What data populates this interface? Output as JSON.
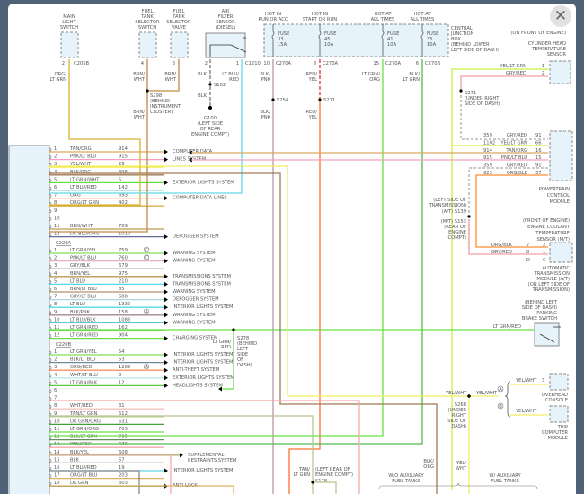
{
  "components": {
    "main_light_switch": {
      "label": [
        "MAIN",
        "LIGHT",
        "SWITCH"
      ],
      "pin": "2",
      "connector": "C205B",
      "wire": [
        "ORG/",
        "LT GRN"
      ]
    },
    "fuel_tank_selector_switch": {
      "label": [
        "FUEL",
        "TANK",
        "SELECTOR",
        "SWITCH"
      ],
      "pin": "4",
      "wire": [
        "BRN/",
        "WHT"
      ]
    },
    "fuel_tank_selector_valve": {
      "label": [
        "FUEL",
        "TANK",
        "SELECTOR",
        "VALVE"
      ],
      "pin": "3",
      "wire": [
        "BRN/",
        "WHT"
      ]
    },
    "s298": {
      "label": [
        "S298",
        "(BEHIND",
        "INSTRUMENT",
        "CLUSTER)"
      ],
      "wire": [
        "BRN/",
        "WHT"
      ]
    },
    "air_filter_sensor": {
      "label": [
        "AIR",
        "FILTER",
        "SENSOR",
        "(DIESEL)"
      ],
      "pin1": "1",
      "pin2": "2",
      "connector": "C1210",
      "wire_blk": "BLK",
      "wire_2": [
        "LT BLU/",
        "RED"
      ],
      "splice": "S102",
      "wire_blk2": "BLK",
      "ground": [
        "G100",
        "(LEFT SIDE",
        "OF REAR",
        "ENGINE COMPT)"
      ]
    },
    "central_junction_box": {
      "label": [
        "CENTRAL",
        "JUNCTION",
        "BOX",
        "(BEHIND LOWER",
        "LEFT SIDE OF DASH)"
      ],
      "fuses": [
        {
          "hot": [
            "HOT IN",
            "RUN OR ACC"
          ],
          "fuse": [
            "FUSE",
            "33",
            "15A"
          ],
          "pin": "10",
          "connector": "C270A",
          "wire": [
            "BLK/",
            "PNK"
          ],
          "splice": "S254",
          "wire2": [
            "BLK/",
            "PNK"
          ]
        },
        {
          "hot": [
            "HOT IN",
            "START OR RUN"
          ],
          "fuse": [
            "FUSE",
            "45",
            "10A"
          ],
          "pin": "8",
          "connector": "C270A",
          "wire": [
            "RED/",
            "YEL"
          ],
          "splice": "S271",
          "wire2": [
            "RED/",
            "YEL"
          ]
        },
        {
          "hot": [
            "HOT AT",
            "ALL TIMES"
          ],
          "fuse": [
            "FUSE",
            "41",
            "10A"
          ],
          "pin": "15",
          "connector": "C270A",
          "wire": [
            "LT GRN/",
            "ORG"
          ]
        },
        {
          "hot": [
            "HOT AT",
            "ALL TIMES"
          ],
          "fuse": [
            "FUSE",
            "35",
            "10A"
          ],
          "pin": "6",
          "connector": "C270B",
          "wire": [
            "BLK/",
            "LT GRN"
          ]
        }
      ]
    },
    "cyl_head_temp_sensor": {
      "label": [
        "(ON FRONT OF ENGINE)",
        "CYLINDER HEAD",
        "TEMPERATURE",
        "SENSOR"
      ],
      "pins": [
        {
          "wire": "YEL/LT GRN",
          "pin": "1"
        },
        {
          "wire": "GRY/RED",
          "pin": "2"
        }
      ],
      "splice": [
        "S271",
        "(UNDER RIGHT",
        "SIDE OF DASH)"
      ]
    },
    "pcm": {
      "label": [
        "POWERTRAIN",
        "CONTROL",
        "MODULE"
      ],
      "pins": [
        {
          "circuit": "359",
          "wire": "GRY/RED",
          "pin": "91"
        },
        {
          "circuit": "1102",
          "wire": "YEL/LT GRN",
          "pin": "66"
        },
        {
          "circuit": "914",
          "wire": "TAN/ORG",
          "pin": "16"
        },
        {
          "circuit": "915",
          "wire": "PNK/LT BLU",
          "pin": "15"
        },
        {
          "circuit": "359",
          "wire": "GRY/RED",
          "pin": "91"
        },
        {
          "circuit": "923",
          "wire": "ORG/BLK",
          "pin": "37"
        }
      ]
    },
    "s139": {
      "label": [
        "(LEFT SIDE OF",
        "TRANSMISSION)",
        "(A/T)   S139"
      ],
      "label2": [
        "(M/T)   S153",
        "(REAR OF",
        "ENGINE",
        "COMPT)"
      ]
    },
    "ect_sensor": {
      "label": [
        "(FRONT OF ENGINE)",
        "ENGINE COOLANT",
        "TEMPERATURE",
        "SENSOR (M/T)"
      ],
      "pins": [
        {
          "wire": "ORG/BLK",
          "n": "7",
          "pin": "2"
        },
        {
          "wire": "GRY/RED",
          "n": "8",
          "pin": "1"
        }
      ]
    },
    "atm": {
      "label": [
        "AUTOMATIC",
        "TRANSMISSION",
        "MODULE (A/T)",
        "(ON LEFT SIDE OF",
        "TRANSMISSION)"
      ],
      "marks": [
        "D",
        "C"
      ]
    },
    "parking_brake_switch": {
      "label": [
        "(BEHIND LEFT",
        "SIDE OF DASH)",
        "PARKING",
        "BRAKE SWITCH"
      ],
      "wire": "LT GRN/RED"
    },
    "s278": {
      "label": [
        "S278",
        "(BEHIND",
        "LEFT",
        "SIDE",
        "OF",
        "DASH)"
      ],
      "wire": [
        "LT GRN/",
        "RED"
      ]
    },
    "s268": {
      "label": [
        "S268",
        "(UNDER",
        "RIGHT",
        "SIDE OF",
        "DASH)"
      ],
      "wire_left": "YEL/WHT",
      "wire_right": "YEL/WHT",
      "wire_down": [
        "YEL/",
        "WHT"
      ]
    },
    "overhead_console": {
      "label": [
        "OVERHEAD",
        "CONSOLE"
      ],
      "wire": "YEL/WHT",
      "pin": "3",
      "mark": "A"
    },
    "trip_computer": {
      "label": [
        "TRIP",
        "COMPUTER",
        "MODULE"
      ],
      "wire": "YEL/WHT",
      "mark": "B"
    },
    "bottom": {
      "blk_org": [
        "BLK/",
        "ORG"
      ],
      "wo_aux": [
        "W/O AUXILIARY",
        "FUEL TANKS"
      ],
      "w_aux": [
        "W/ AUXILIARY",
        "FUEL TANKS"
      ],
      "tan_lt_grn": [
        "TAN/",
        "LT GRN"
      ],
      "s178": [
        "(LEFT REAR OF",
        "ENGINE COMPT)",
        "S178"
      ]
    }
  },
  "connectors": [
    {
      "name": "",
      "rows": [
        {
          "pin": "1",
          "wire": "TAN/ORG",
          "circuit": "914",
          "color": "#d9a860",
          "dest": "COMPUTER DATA",
          "mark": ""
        },
        {
          "pin": "2",
          "wire": "PNK/LT BLU",
          "circuit": "915",
          "color": "#f4a0c0",
          "dest": "LINES SYSTEM",
          "mark": ""
        },
        {
          "pin": "3",
          "wire": "YEL/WHT",
          "circuit": "29",
          "color": "#f2ee60",
          "dest": "",
          "mark": ""
        },
        {
          "pin": "4",
          "wire": "BLK/ORG",
          "circuit": "396",
          "color": "#a07850",
          "dest": "",
          "mark": ""
        },
        {
          "pin": "5",
          "wire": "LT GRN/WHT",
          "circuit": "5",
          "color": "#66e040",
          "dest": "EXTERIOR LIGHTS SYSTEM",
          "mark": ""
        },
        {
          "pin": "6",
          "wire": "LT BLU/RED",
          "circuit": "142",
          "color": "#7fdcec",
          "dest": "",
          "mark": ""
        },
        {
          "pin": "7",
          "wire": "ORG",
          "circuit": "693",
          "color": "#ff8c30",
          "dest": "COMPUTER DATA LINES",
          "mark": ""
        },
        {
          "pin": "8",
          "wire": "ORG/LT GRN",
          "circuit": "402",
          "color": "#d8b040",
          "dest": "",
          "mark": ""
        },
        {
          "pin": "9",
          "wire": "",
          "circuit": "",
          "color": "",
          "dest": "",
          "mark": ""
        },
        {
          "pin": "10",
          "wire": "",
          "circuit": "",
          "color": "",
          "dest": "",
          "mark": ""
        },
        {
          "pin": "11",
          "wire": "BRN/WHT",
          "circuit": "789",
          "color": "#c09850",
          "dest": "",
          "mark": ""
        },
        {
          "pin": "12",
          "wire": "DK BLU/ORG",
          "circuit": "1010",
          "color": "#6a6a9a",
          "dest": "DEFOGGER SYSTEM",
          "mark": ""
        }
      ]
    },
    {
      "name": "C220A",
      "rows": [
        {
          "pin": "1",
          "wire": "LT GRN/YEL",
          "circuit": "759",
          "color": "#7ce050",
          "dest": "WARNING SYSTEM",
          "mark": "C"
        },
        {
          "pin": "2",
          "wire": "PNK/LT BLU",
          "circuit": "760",
          "color": "#e8b0c8",
          "dest": "WARNING SYSTEM",
          "mark": "C"
        },
        {
          "pin": "3",
          "wire": "GRY/BLK",
          "circuit": "679",
          "color": "#aaaaaa",
          "dest": "",
          "mark": ""
        },
        {
          "pin": "4",
          "wire": "BRN/YEL",
          "circuit": "975",
          "color": "#b89850",
          "dest": "TRANSMISSIONS SYSTEM",
          "mark": ""
        },
        {
          "pin": "5",
          "wire": "LT BLU",
          "circuit": "210",
          "color": "#50d8f0",
          "dest": "TRANSMISSIONS SYSTEM",
          "mark": ""
        },
        {
          "pin": "6",
          "wire": "BRN/LT BLU",
          "circuit": "85",
          "color": "#b09070",
          "dest": "WARNING SYSTEM",
          "mark": ""
        },
        {
          "pin": "7",
          "wire": "GRY/LT BLU",
          "circuit": "688",
          "color": "#a8d8e8",
          "dest": "DEFOGGER SYSTEM",
          "mark": ""
        },
        {
          "pin": "8",
          "wire": "LT BLU",
          "circuit": "1332",
          "color": "#50d8f0",
          "dest": "INTERIOR LIGHTS SYSTEM",
          "mark": ""
        },
        {
          "pin": "9",
          "wire": "BLK/PNK",
          "circuit": "158",
          "color": "#a08890",
          "dest": "WARNING SYSTEM",
          "mark": "A"
        },
        {
          "pin": "10",
          "wire": "LT BLU/BLK",
          "circuit": "1083",
          "color": "#60c8d8",
          "dest": "WARNING SYSTEM",
          "mark": ""
        },
        {
          "pin": "11",
          "wire": "LT GRN/RED",
          "circuit": "162",
          "color": "#66e040",
          "dest": "",
          "mark": ""
        },
        {
          "pin": "12",
          "wire": "LT GRN/RED",
          "circuit": "904",
          "color": "#66e040",
          "dest": "CHARGING SYSTEM",
          "mark": ""
        }
      ]
    },
    {
      "name": "C220B",
      "rows": [
        {
          "pin": "1",
          "wire": "LT GRN/YEL",
          "circuit": "54",
          "color": "#7ce050",
          "dest": "INTERIOR LIGHTS SYSTEM",
          "mark": ""
        },
        {
          "pin": "2",
          "wire": "BLK/LT BLU",
          "circuit": "53",
          "color": "#708898",
          "dest": "INTERIOR LIGHTS SYSTEM",
          "mark": ""
        },
        {
          "pin": "3",
          "wire": "ORG/RED",
          "circuit": "1269",
          "color": "#ff9060",
          "dest": "ANTI-THEFT SYSTEM",
          "mark": "A"
        },
        {
          "pin": "4",
          "wire": "WHT/LT BLU",
          "circuit": "2",
          "color": "#b8e8f0",
          "dest": "EXTERIOR LIGHTS SYSTEM",
          "mark": ""
        },
        {
          "pin": "5",
          "wire": "LT GRN/BLK",
          "circuit": "12",
          "color": "#60c840",
          "dest": "HEADLIGHTS SYSTEM",
          "mark": ""
        },
        {
          "pin": "6",
          "wire": "",
          "circuit": "",
          "color": "",
          "dest": "",
          "mark": ""
        },
        {
          "pin": "7",
          "wire": "",
          "circuit": "",
          "color": "",
          "dest": "",
          "mark": ""
        },
        {
          "pin": "8",
          "wire": "WHT/RED",
          "circuit": "31",
          "color": "#f8c0c0",
          "dest": "",
          "mark": ""
        },
        {
          "pin": "9",
          "wire": "TAN/LT GRN",
          "circuit": "512",
          "color": "#b8c890",
          "dest": "",
          "mark": ""
        },
        {
          "pin": "10",
          "wire": "DK GRN/ORG",
          "circuit": "531",
          "color": "#40a040",
          "dest": "",
          "mark": ""
        },
        {
          "pin": "11",
          "wire": "LT GRN/ORG",
          "circuit": "705",
          "color": "#66e040",
          "dest": "",
          "mark": ""
        },
        {
          "pin": "12",
          "wire": "BLK/LT GRN",
          "circuit": "785",
          "color": "#609060",
          "dest": "",
          "mark": ""
        },
        {
          "pin": "13",
          "wire": "PNK/ORG",
          "circuit": "676",
          "color": "#f8a8a8",
          "dest": "",
          "mark": ""
        },
        {
          "pin": "14",
          "wire": "BLK/YEL",
          "circuit": "608",
          "color": "#b0a870",
          "dest": "SUPPLEMENTAL",
          "dest2": "RESTRAINTS SYSTEM",
          "mark": ""
        },
        {
          "pin": "15",
          "wire": "BLK",
          "circuit": "57",
          "color": "#888888",
          "dest": "",
          "mark": ""
        },
        {
          "pin": "16",
          "wire": "LT BLU/RED",
          "circuit": "19",
          "color": "#60d8e8",
          "dest": "INTERIOR LIGHTS SYSTEM",
          "mark": ""
        },
        {
          "pin": "17",
          "wire": "ORG/LT BLU",
          "circuit": "203",
          "color": "#e0b060",
          "dest": "",
          "mark": ""
        },
        {
          "pin": "18",
          "wire": "DK GRN",
          "circuit": "603",
          "color": "#409040",
          "dest": "ANTI-LOCK",
          "mark": ""
        }
      ]
    }
  ],
  "right_dest": "COMPUTER DATA LINES SYSTEM",
  "close_button": {
    "icon": "close-x-icon"
  }
}
